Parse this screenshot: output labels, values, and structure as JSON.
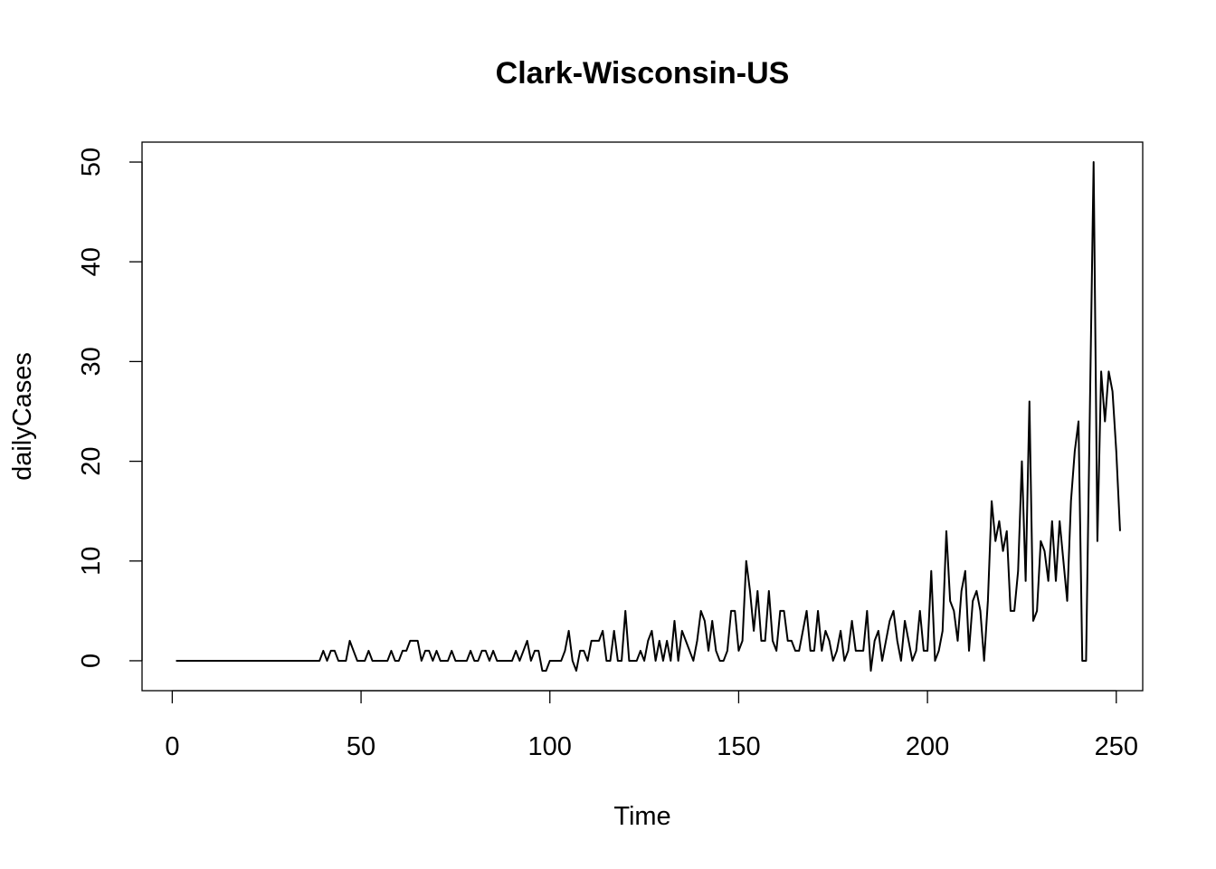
{
  "chart_data": {
    "type": "line",
    "title": "Clark-Wisconsin-US",
    "xlabel": "Time",
    "ylabel": "dailyCases",
    "xlim": [
      -8,
      257
    ],
    "ylim": [
      -3,
      52
    ],
    "xticks": [
      0,
      50,
      100,
      150,
      200,
      250
    ],
    "xtick_labels": [
      "0",
      "50",
      "100",
      "150",
      "200",
      "250"
    ],
    "yticks": [
      0,
      10,
      20,
      30,
      40,
      50
    ],
    "ytick_labels": [
      "0",
      "10",
      "20",
      "30",
      "40",
      "50"
    ],
    "grid": false,
    "legend": "none",
    "line_color": "#000000",
    "series": [
      {
        "x_start": 1,
        "values": [
          0,
          0,
          0,
          0,
          0,
          0,
          0,
          0,
          0,
          0,
          0,
          0,
          0,
          0,
          0,
          0,
          0,
          0,
          0,
          0,
          0,
          0,
          0,
          0,
          0,
          0,
          0,
          0,
          0,
          0,
          0,
          0,
          0,
          0,
          0,
          0,
          0,
          0,
          0,
          1,
          0,
          1,
          1,
          0,
          0,
          0,
          2,
          1,
          0,
          0,
          0,
          1,
          0,
          0,
          0,
          0,
          0,
          1,
          0,
          0,
          1,
          1,
          2,
          2,
          2,
          0,
          1,
          1,
          0,
          1,
          0,
          0,
          0,
          1,
          0,
          0,
          0,
          0,
          1,
          0,
          0,
          1,
          1,
          0,
          1,
          0,
          0,
          0,
          0,
          0,
          1,
          0,
          1,
          2,
          0,
          1,
          1,
          -1,
          -1,
          0,
          0,
          0,
          0,
          1,
          3,
          0,
          -1,
          1,
          1,
          0,
          2,
          2,
          2,
          3,
          0,
          0,
          3,
          0,
          0,
          5,
          0,
          0,
          0,
          1,
          0,
          2,
          3,
          0,
          2,
          0,
          2,
          0,
          4,
          0,
          3,
          2,
          1,
          0,
          2,
          5,
          4,
          1,
          4,
          1,
          0,
          0,
          1,
          5,
          5,
          1,
          2,
          10,
          7,
          3,
          7,
          2,
          2,
          7,
          2,
          1,
          5,
          5,
          2,
          2,
          1,
          1,
          3,
          5,
          1,
          1,
          5,
          1,
          3,
          2,
          0,
          1,
          3,
          0,
          1,
          4,
          1,
          1,
          1,
          5,
          -1,
          2,
          3,
          0,
          2,
          4,
          5,
          2,
          0,
          4,
          2,
          0,
          1,
          5,
          1,
          1,
          9,
          0,
          1,
          3,
          13,
          6,
          5,
          2,
          7,
          9,
          1,
          6,
          7,
          5,
          0,
          6,
          16,
          12,
          14,
          11,
          13,
          5,
          5,
          9,
          20,
          8,
          26,
          4,
          5,
          12,
          11,
          8,
          14,
          8,
          14,
          10,
          6,
          16,
          21,
          24,
          0,
          0,
          25,
          50,
          12,
          29,
          24,
          29,
          27,
          21,
          13
        ]
      }
    ]
  }
}
